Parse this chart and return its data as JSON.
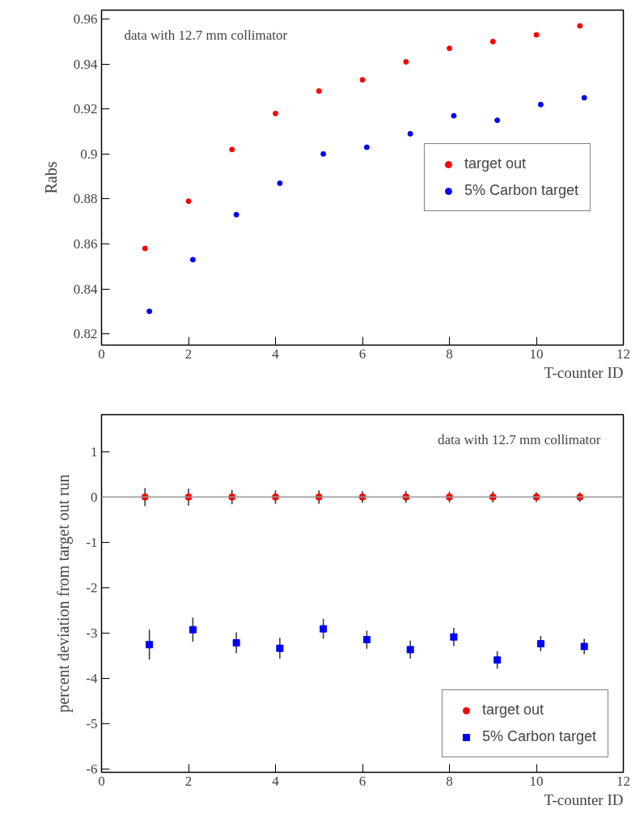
{
  "chart_data": [
    {
      "type": "scatter",
      "xlabel": "T-counter ID",
      "ylabel": "Rabs",
      "annotations": [
        "data with 12.7 mm collimator"
      ],
      "xlim": [
        0,
        12
      ],
      "xticks": [
        0,
        2,
        4,
        6,
        8,
        10,
        12
      ],
      "ylim": [
        0.815,
        0.964
      ],
      "yticks": [
        0.82,
        0.84,
        0.86,
        0.88,
        0.9,
        0.92,
        0.94,
        0.96
      ],
      "legend": "right",
      "marker": "circle",
      "series": [
        {
          "name": "target out",
          "color": "#ff0000",
          "x": [
            1,
            2,
            3,
            4,
            5,
            6,
            7,
            8,
            9,
            10,
            11
          ],
          "values": [
            0.858,
            0.879,
            0.902,
            0.918,
            0.928,
            0.933,
            0.941,
            0.947,
            0.95,
            0.953,
            0.957
          ]
        },
        {
          "name": "5% Carbon target",
          "color": "#0000ff",
          "x": [
            1.1,
            2.1,
            3.1,
            4.1,
            5.1,
            6.1,
            7.1,
            8.1,
            9.1,
            10.1,
            11.1
          ],
          "values": [
            0.83,
            0.853,
            0.873,
            0.887,
            0.9,
            0.903,
            0.909,
            0.917,
            0.915,
            0.922,
            0.925
          ]
        }
      ]
    },
    {
      "type": "scatter",
      "xlabel": "T-counter ID",
      "ylabel": "percent deviation from target out run",
      "annotations": [
        "data with 12.7 mm collimator"
      ],
      "xlim": [
        0,
        12
      ],
      "xticks": [
        0,
        2,
        4,
        6,
        8,
        10,
        12
      ],
      "ylim": [
        -6.08,
        1.82
      ],
      "yticks": [
        -6,
        -5,
        -4,
        -3,
        -2,
        -1,
        0,
        1
      ],
      "legend": "bottom right",
      "ref_lines": [
        {
          "axis": "y",
          "value": 0,
          "color": "#999999"
        }
      ],
      "series": [
        {
          "name": "target out",
          "color": "#ff0000",
          "marker": "circle",
          "x": [
            1,
            2,
            3,
            4,
            5,
            6,
            7,
            8,
            9,
            10,
            11
          ],
          "values": [
            0,
            0,
            0,
            0,
            0,
            0,
            0,
            0,
            0,
            0,
            0
          ],
          "errors": [
            0.2,
            0.19,
            0.16,
            0.15,
            0.15,
            0.13,
            0.13,
            0.12,
            0.12,
            0.11,
            0.1
          ]
        },
        {
          "name": "5% Carbon target",
          "color": "#0000ff",
          "marker": "square",
          "x": [
            1.1,
            2.1,
            3.1,
            4.1,
            5.1,
            6.1,
            7.1,
            8.1,
            9.1,
            10.1,
            11.1
          ],
          "values": [
            -3.26,
            -2.93,
            -3.22,
            -3.34,
            -2.91,
            -3.15,
            -3.37,
            -3.09,
            -3.6,
            -3.24,
            -3.3
          ],
          "errors": [
            0.33,
            0.27,
            0.23,
            0.23,
            0.22,
            0.2,
            0.2,
            0.2,
            0.19,
            0.17,
            0.17
          ]
        }
      ]
    }
  ]
}
